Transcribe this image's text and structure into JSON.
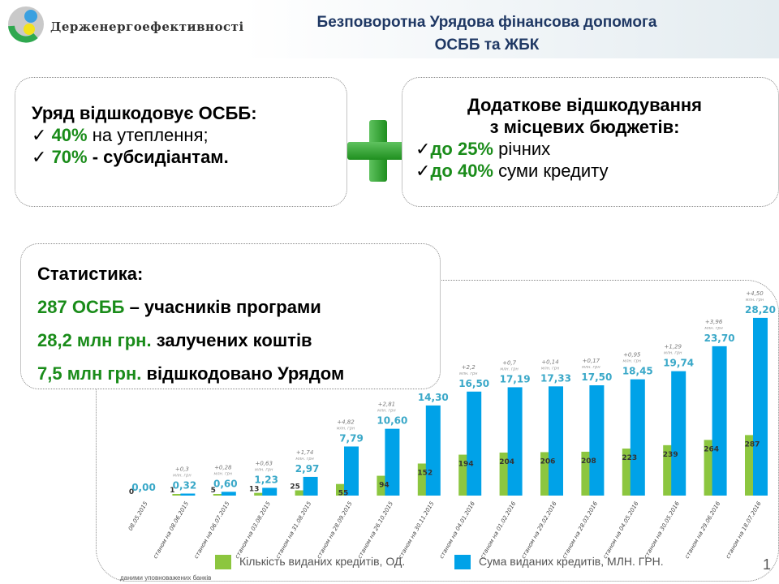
{
  "header": {
    "org": "Держенергоефективності",
    "title_line1": "Безповоротна Урядова фінансова допомога",
    "title_line2": "ОСББ та ЖБК"
  },
  "gov_box": {
    "heading": "Уряд відшкодовує ОСББ:",
    "items": [
      {
        "check": "✓",
        "pct": "40%",
        "text": " на утеплення;"
      },
      {
        "check": "✓",
        "pct": "70%",
        "text": " - субсидіантам."
      }
    ]
  },
  "local_box": {
    "heading1": "Додаткове відшкодування",
    "heading2": "з місцевих бюджетів:",
    "items": [
      {
        "check": "✓",
        "pct": "до 25%",
        "text": " річних"
      },
      {
        "check": "✓",
        "pct": "до 40%",
        "text": " суми кредиту"
      }
    ]
  },
  "stats": {
    "heading": "Статистика:",
    "rows": [
      {
        "hl": "287 ОСББ",
        "text": " – учасників програми"
      },
      {
        "hl": "28,2 млн грн.",
        "text": " залучених коштів"
      },
      {
        "hl": "7,5 млн грн.",
        "text": " відшкодовано Урядом"
      }
    ]
  },
  "chart_data": {
    "type": "bar",
    "categories": [
      "08.05.2015",
      "станом на 08.06.2015",
      "станом на 06.07.2015",
      "станом на 03.08.2015",
      "станом на 31.08.2015",
      "станом на 28.09.2015",
      "станом на 26.10.2015",
      "станом на 30.11.2015",
      "станом на 04.01.2016",
      "станом на 01.02.2016",
      "станом на 29.02.2016",
      "станом на 28.03.2016",
      "станом на 04.05.2016",
      "станом на 30.05.2016",
      "станом на 29.06.2016",
      "станом на 18.07.2016"
    ],
    "series": [
      {
        "name": "Кількість виданих кредитів, ОД.",
        "color": "#8cc63f",
        "values": [
          0,
          1,
          5,
          13,
          25,
          55,
          94,
          152,
          194,
          204,
          206,
          208,
          223,
          239,
          264,
          287
        ]
      },
      {
        "name": "Сума виданих кредитів, МЛН. ГРН.",
        "color": "#00a2e8",
        "values": [
          0.0,
          0.32,
          0.6,
          1.23,
          2.97,
          7.79,
          10.6,
          14.3,
          16.5,
          17.19,
          17.33,
          17.5,
          18.45,
          19.74,
          23.7,
          28.2
        ],
        "labels": [
          "0,00",
          "0,32",
          "0,60",
          "1,23",
          "2,97",
          "7,79",
          "10,60",
          "14,30",
          "16,50",
          "17,19",
          "17,33",
          "17,50",
          "18,45",
          "19,74",
          "23,70",
          "28,20"
        ]
      }
    ],
    "increments": [
      null,
      "+0,3",
      "+0,28",
      "+0,63",
      "+1,74",
      "+4,82",
      "+2,81",
      null,
      "+2,2",
      "+0,7",
      "+0,14",
      "+0,17",
      "+0,95",
      "+1,29",
      "+3,96",
      "+4,50"
    ],
    "increment_unit": "млн. грн"
  },
  "footer": {
    "note": "даними уповноважених банків",
    "page": "1"
  }
}
